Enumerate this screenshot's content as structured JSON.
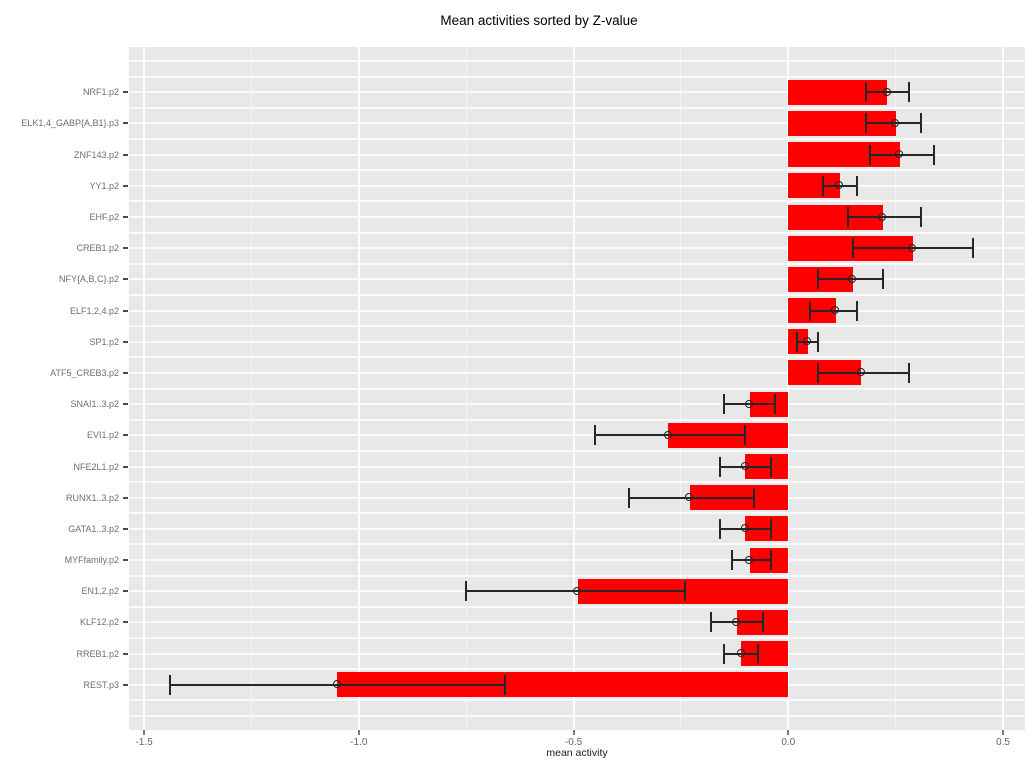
{
  "chart_data": {
    "type": "bar",
    "orientation": "horizontal",
    "title": "Mean activities sorted by Z-value",
    "xlabel": "mean activity",
    "ylabel": "",
    "xlim": [
      -1.54,
      0.55
    ],
    "xtick_values": [
      -1.5,
      -1.0,
      -0.5,
      0.0,
      0.5
    ],
    "xtick_labels": [
      "-1.5",
      "-1.0",
      "-0.5",
      "0.0",
      "0.5"
    ],
    "minor_xtick_values": [
      -1.25,
      -0.75,
      -0.25,
      0.25
    ],
    "legend_position": "none",
    "grid": "white major and minor gridlines on gray panel",
    "marker": "open-circle at mean with error whiskers",
    "colors": {
      "bar": "#FF0000",
      "panel_background": "#E8E8E8",
      "page_background": "#FFFFFF",
      "error_bar": "#262626",
      "axis_text": "#666666",
      "category_text": "#6E6E6E",
      "title_text": "#000000"
    },
    "rows": [
      {
        "label": "NRF1.p2",
        "mean": 0.23,
        "lo": 0.18,
        "hi": 0.28
      },
      {
        "label": "ELK1,4_GABP{A,B1}.p3",
        "mean": 0.25,
        "lo": 0.18,
        "hi": 0.31
      },
      {
        "label": "ZNF143.p2",
        "mean": 0.26,
        "lo": 0.19,
        "hi": 0.34
      },
      {
        "label": "YY1.p2",
        "mean": 0.12,
        "lo": 0.08,
        "hi": 0.16
      },
      {
        "label": "EHF.p2",
        "mean": 0.22,
        "lo": 0.14,
        "hi": 0.31
      },
      {
        "label": "CREB1.p2",
        "mean": 0.29,
        "lo": 0.15,
        "hi": 0.43
      },
      {
        "label": "NFY{A,B,C}.p2",
        "mean": 0.15,
        "lo": 0.07,
        "hi": 0.22
      },
      {
        "label": "ELF1,2,4.p2",
        "mean": 0.11,
        "lo": 0.05,
        "hi": 0.16
      },
      {
        "label": "SP1.p2",
        "mean": 0.045,
        "lo": 0.02,
        "hi": 0.07
      },
      {
        "label": "ATF5_CREB3.p2",
        "mean": 0.17,
        "lo": 0.07,
        "hi": 0.28
      },
      {
        "label": "SNAI1..3.p2",
        "mean": -0.09,
        "lo": -0.15,
        "hi": -0.03
      },
      {
        "label": "EVI1.p2",
        "mean": -0.28,
        "lo": -0.45,
        "hi": -0.1
      },
      {
        "label": "NFE2L1.p2",
        "mean": -0.1,
        "lo": -0.16,
        "hi": -0.04
      },
      {
        "label": "RUNX1..3.p2",
        "mean": -0.23,
        "lo": -0.37,
        "hi": -0.08
      },
      {
        "label": "GATA1..3.p2",
        "mean": -0.1,
        "lo": -0.16,
        "hi": -0.04
      },
      {
        "label": "MYFfamily.p2",
        "mean": -0.09,
        "lo": -0.13,
        "hi": -0.04
      },
      {
        "label": "EN1,2.p2",
        "mean": -0.49,
        "lo": -0.75,
        "hi": -0.24
      },
      {
        "label": "KLF12.p2",
        "mean": -0.12,
        "lo": -0.18,
        "hi": -0.06
      },
      {
        "label": "RREB1.p2",
        "mean": -0.11,
        "lo": -0.15,
        "hi": -0.07
      },
      {
        "label": "REST.p3",
        "mean": -1.05,
        "lo": -1.44,
        "hi": -0.66
      }
    ]
  }
}
